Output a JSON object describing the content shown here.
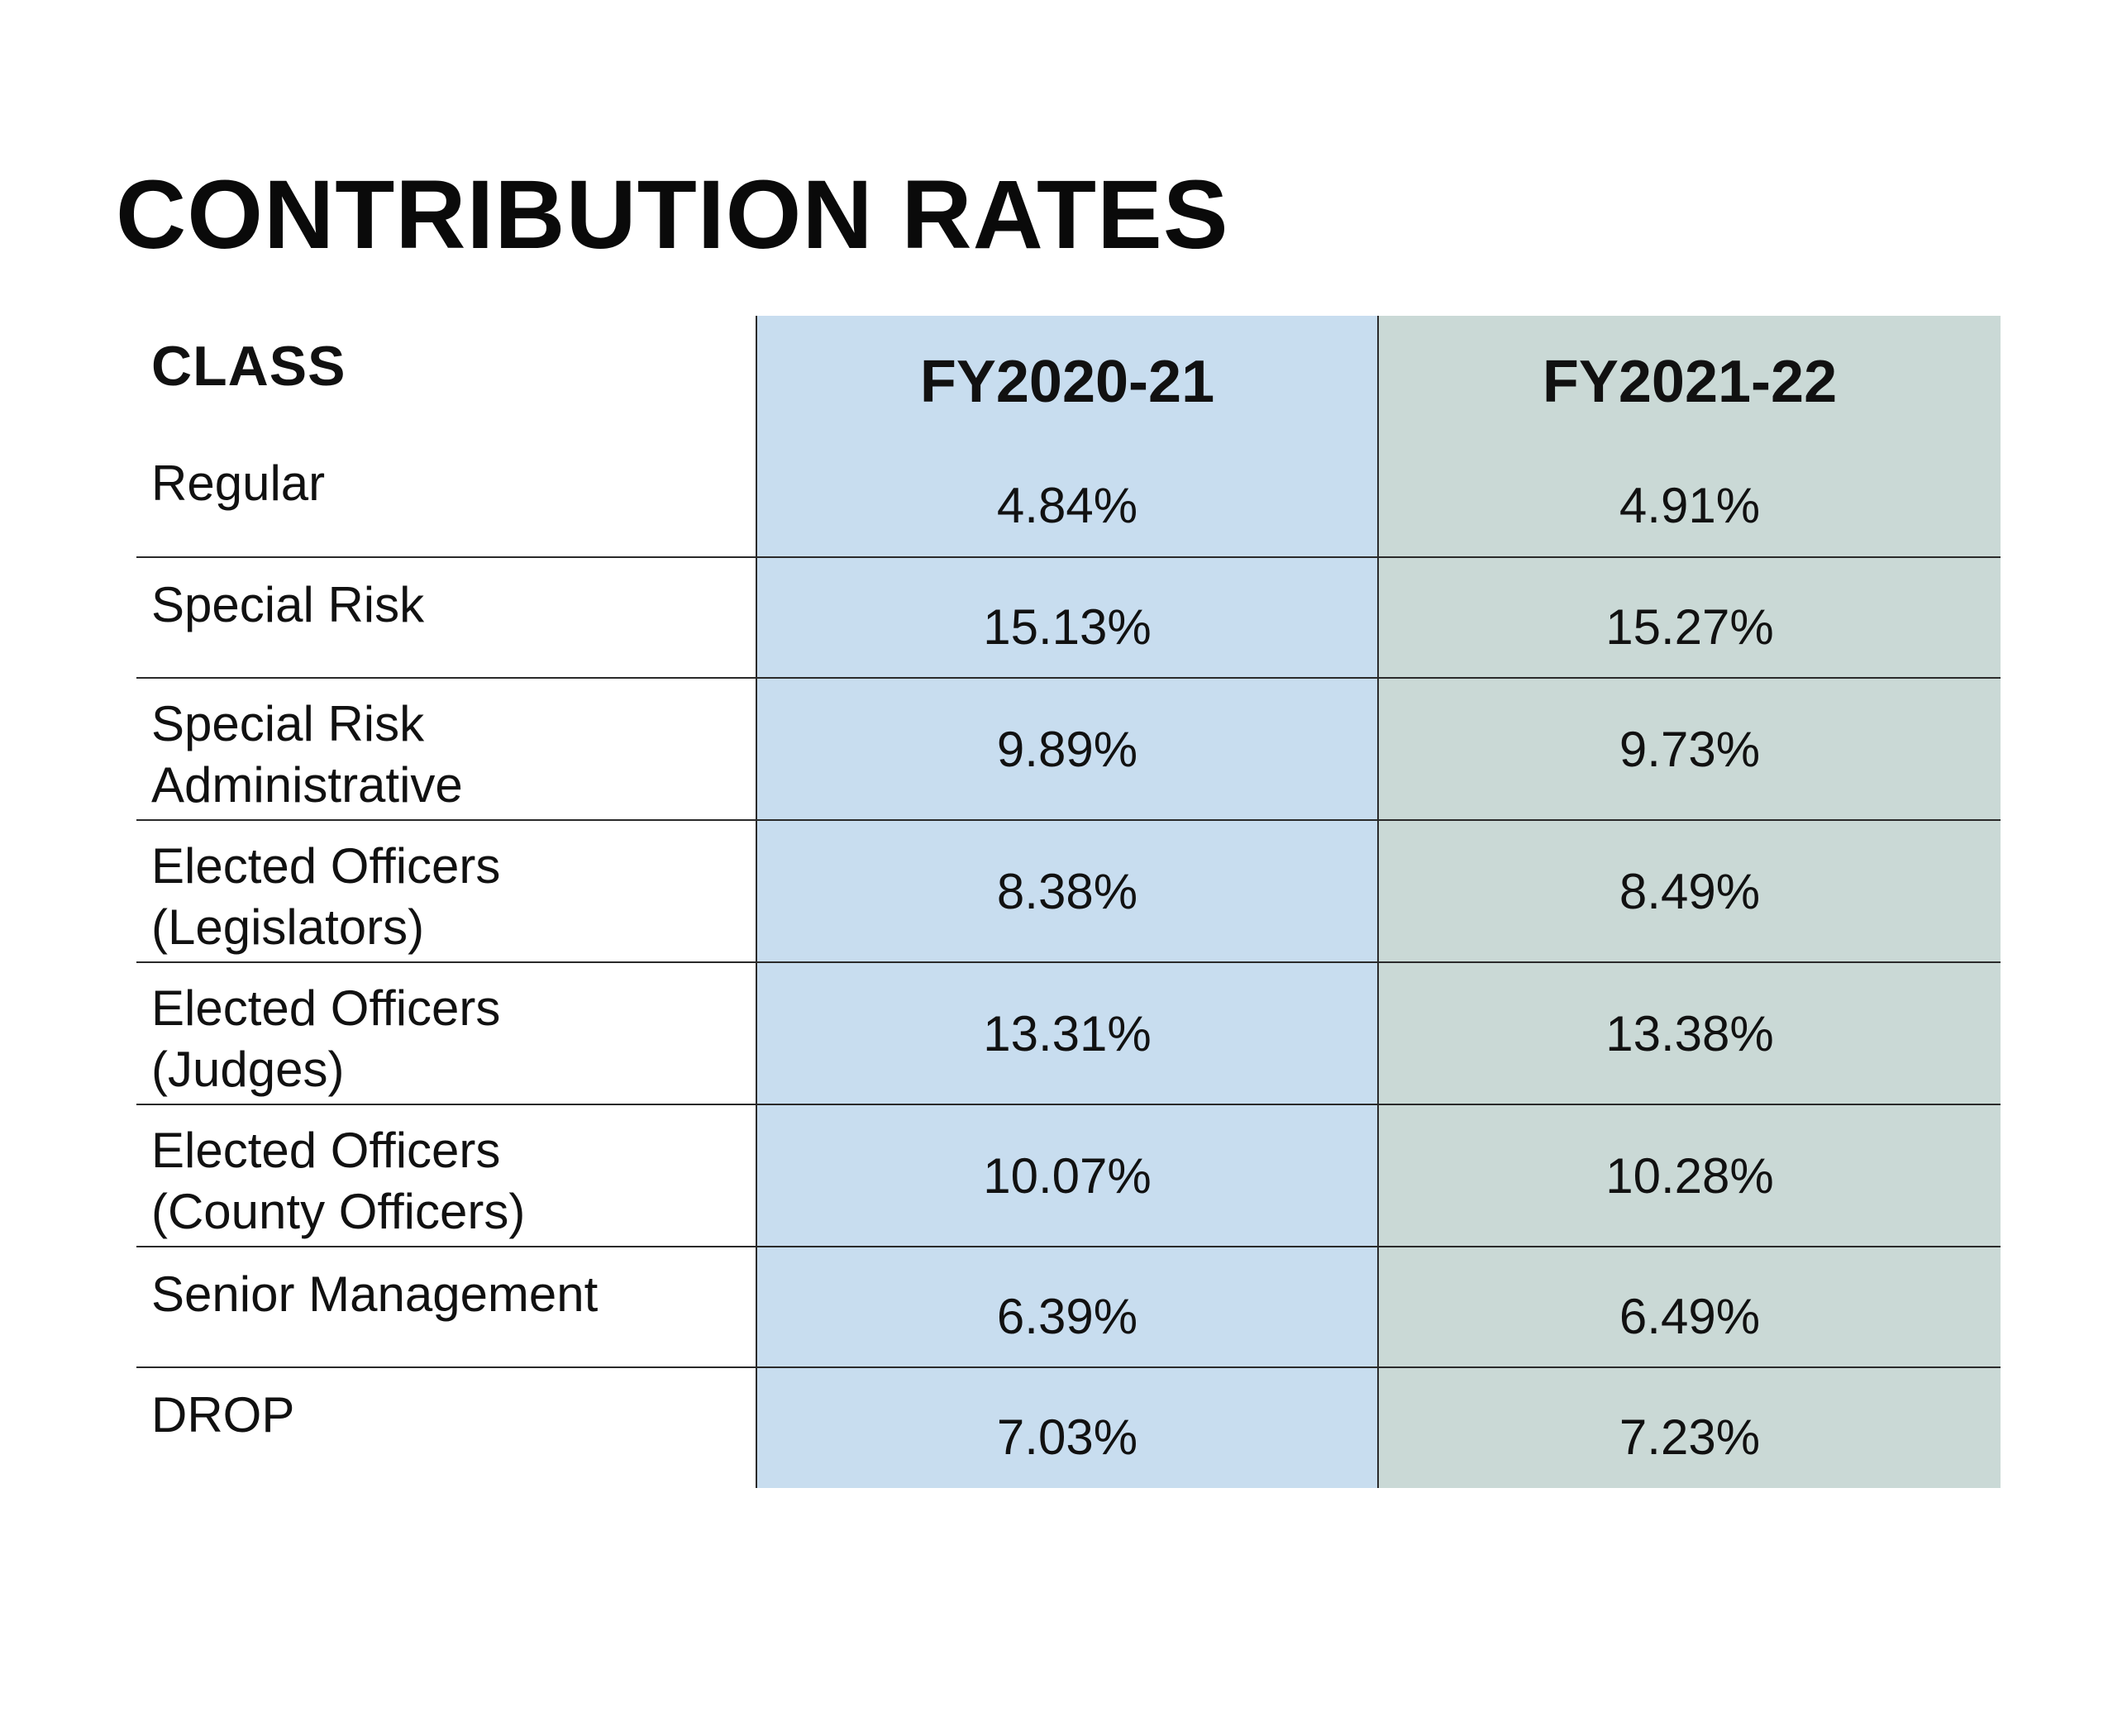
{
  "title": "CONTRIBUTION RATES",
  "table": {
    "headers": {
      "class": "CLASS",
      "fy1": "FY2020-21",
      "fy2": "FY2021-22"
    },
    "rows": [
      {
        "class_line1": "Regular",
        "class_line2": "",
        "fy1": "4.84%",
        "fy2": "4.91%"
      },
      {
        "class_line1": "Special Risk",
        "class_line2": "",
        "fy1": "15.13%",
        "fy2": "15.27%"
      },
      {
        "class_line1": "Special Risk",
        "class_line2": "Administrative",
        "fy1": "9.89%",
        "fy2": "9.73%"
      },
      {
        "class_line1": "Elected Officers",
        "class_line2": "(Legislators)",
        "fy1": "8.38%",
        "fy2": "8.49%"
      },
      {
        "class_line1": "Elected Officers",
        "class_line2": "(Judges)",
        "fy1": "13.31%",
        "fy2": "13.38%"
      },
      {
        "class_line1": "Elected Officers",
        "class_line2": "(County Officers)",
        "fy1": "10.07%",
        "fy2": "10.28%"
      },
      {
        "class_line1": "Senior Management",
        "class_line2": "",
        "fy1": "6.39%",
        "fy2": "6.49%"
      },
      {
        "class_line1": "DROP",
        "class_line2": "",
        "fy1": "7.03%",
        "fy2": "7.23%"
      }
    ]
  },
  "colors": {
    "fy2020_column_bg": "#c8ddef",
    "fy2021_column_bg": "#cad9d6",
    "rule_lines": "#2a2a2a",
    "text": "#111111"
  }
}
